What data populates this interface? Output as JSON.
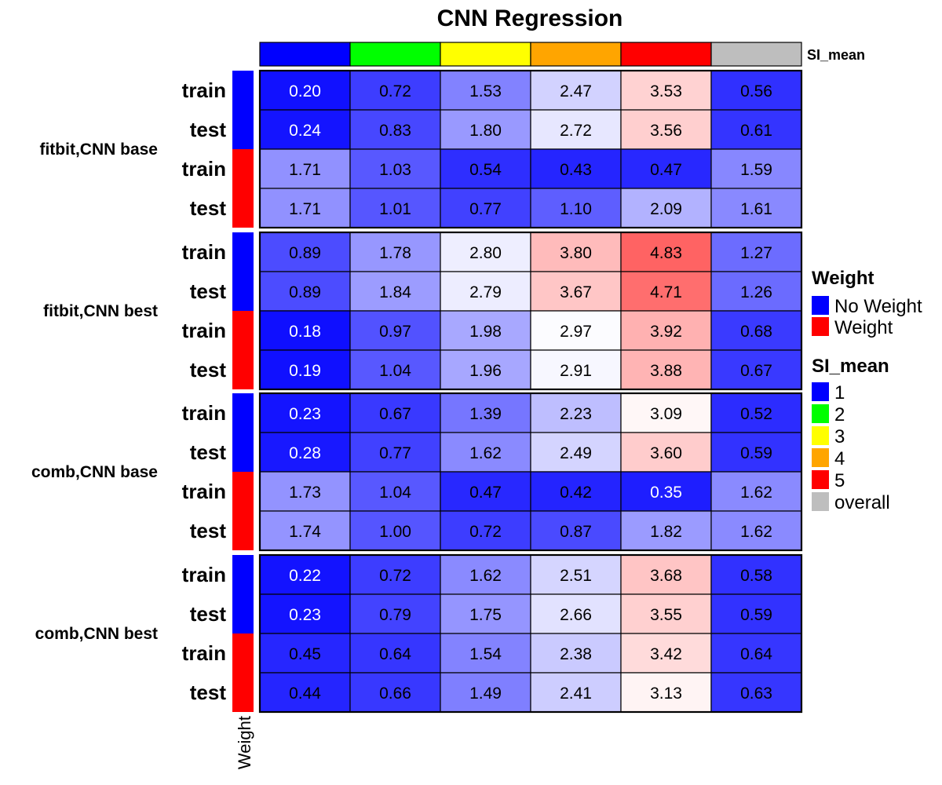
{
  "chart_data": {
    "type": "heatmap",
    "title": "CNN Regression",
    "column_annotation": {
      "name": "SI_mean",
      "categories": [
        "1",
        "2",
        "3",
        "4",
        "5",
        "overall"
      ],
      "colors": [
        "#0000FF",
        "#00FF00",
        "#FFFF00",
        "#FFA500",
        "#FF0000",
        "#BEBEBE"
      ]
    },
    "row_annotation": {
      "name": "Weight",
      "categories": [
        "No Weight",
        "Weight"
      ],
      "colors": [
        "#0000FF",
        "#FF0000"
      ]
    },
    "color_scale": {
      "low_color": "#0000FF",
      "mid_color": "#FFFFFF",
      "high_color": "#FF0000",
      "min": 0,
      "mid": 3,
      "max": 6
    },
    "groups": [
      {
        "name": "fitbit,CNN base",
        "rows": [
          {
            "label": "train",
            "weight": "No Weight",
            "values": [
              0.2,
              0.72,
              1.53,
              2.47,
              3.53,
              0.56
            ]
          },
          {
            "label": "test",
            "weight": "No Weight",
            "values": [
              0.24,
              0.83,
              1.8,
              2.72,
              3.56,
              0.61
            ]
          },
          {
            "label": "train",
            "weight": "Weight",
            "values": [
              1.71,
              1.03,
              0.54,
              0.43,
              0.47,
              1.59
            ]
          },
          {
            "label": "test",
            "weight": "Weight",
            "values": [
              1.71,
              1.01,
              0.77,
              1.1,
              2.09,
              1.61
            ]
          }
        ]
      },
      {
        "name": "fitbit,CNN best",
        "rows": [
          {
            "label": "train",
            "weight": "No Weight",
            "values": [
              0.89,
              1.78,
              2.8,
              3.8,
              4.83,
              1.27
            ]
          },
          {
            "label": "test",
            "weight": "No Weight",
            "values": [
              0.89,
              1.84,
              2.79,
              3.67,
              4.71,
              1.26
            ]
          },
          {
            "label": "train",
            "weight": "Weight",
            "values": [
              0.18,
              0.97,
              1.98,
              2.97,
              3.92,
              0.68
            ]
          },
          {
            "label": "test",
            "weight": "Weight",
            "values": [
              0.19,
              1.04,
              1.96,
              2.91,
              3.88,
              0.67
            ]
          }
        ]
      },
      {
        "name": "comb,CNN base",
        "rows": [
          {
            "label": "train",
            "weight": "No Weight",
            "values": [
              0.23,
              0.67,
              1.39,
              2.23,
              3.09,
              0.52
            ]
          },
          {
            "label": "test",
            "weight": "No Weight",
            "values": [
              0.28,
              0.77,
              1.62,
              2.49,
              3.6,
              0.59
            ]
          },
          {
            "label": "train",
            "weight": "Weight",
            "values": [
              1.73,
              1.04,
              0.47,
              0.42,
              0.35,
              1.62
            ]
          },
          {
            "label": "test",
            "weight": "Weight",
            "values": [
              1.74,
              1.0,
              0.72,
              0.87,
              1.82,
              1.62
            ]
          }
        ]
      },
      {
        "name": "comb,CNN best",
        "rows": [
          {
            "label": "train",
            "weight": "No Weight",
            "values": [
              0.22,
              0.72,
              1.62,
              2.51,
              3.68,
              0.58
            ]
          },
          {
            "label": "test",
            "weight": "No Weight",
            "values": [
              0.23,
              0.79,
              1.75,
              2.66,
              3.55,
              0.59
            ]
          },
          {
            "label": "train",
            "weight": "Weight",
            "values": [
              0.45,
              0.64,
              1.54,
              2.38,
              3.42,
              0.64
            ]
          },
          {
            "label": "test",
            "weight": "Weight",
            "values": [
              0.44,
              0.66,
              1.49,
              2.41,
              3.13,
              0.63
            ]
          }
        ]
      }
    ],
    "legend": {
      "placement": "right",
      "weight_title": "Weight",
      "si_mean_title": "SI_mean"
    },
    "row_annotation_axis_title": "Weight"
  }
}
